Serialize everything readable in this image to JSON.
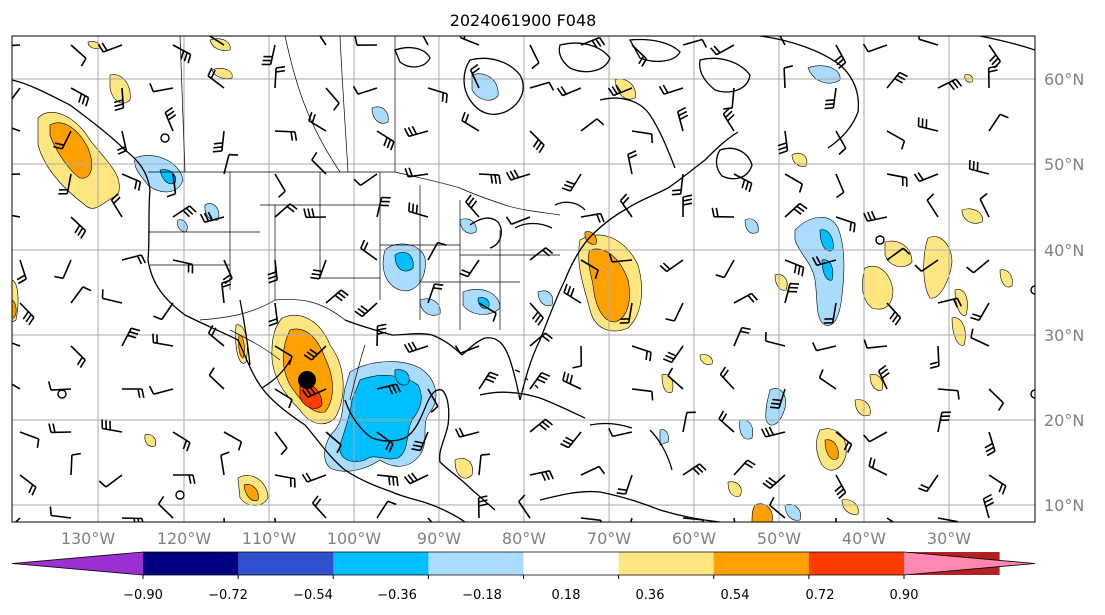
{
  "title": "2024061900 F048",
  "map": {
    "lon_labels": [
      "130°W",
      "120°W",
      "110°W",
      "100°W",
      "90°W",
      "80°W",
      "70°W",
      "60°W",
      "50°W",
      "40°W",
      "30°W"
    ],
    "lat_labels": [
      "60°N",
      "50°N",
      "40°N",
      "30°N",
      "20°N",
      "10°N"
    ],
    "marker": "black dot over northwestern Mexico"
  },
  "colorbar": {
    "labels": [
      "−0.90",
      "−0.72",
      "−0.54",
      "−0.36",
      "−0.18",
      "0.18",
      "0.36",
      "0.54",
      "0.72",
      "0.90"
    ],
    "colors": [
      "#9b30d0",
      "#000080",
      "#3050d0",
      "#00bfff",
      "#aadcff",
      "#ffffff",
      "#ffe680",
      "#ffa000",
      "#ff3c00",
      "#b22222",
      "#ff88b0"
    ]
  }
}
